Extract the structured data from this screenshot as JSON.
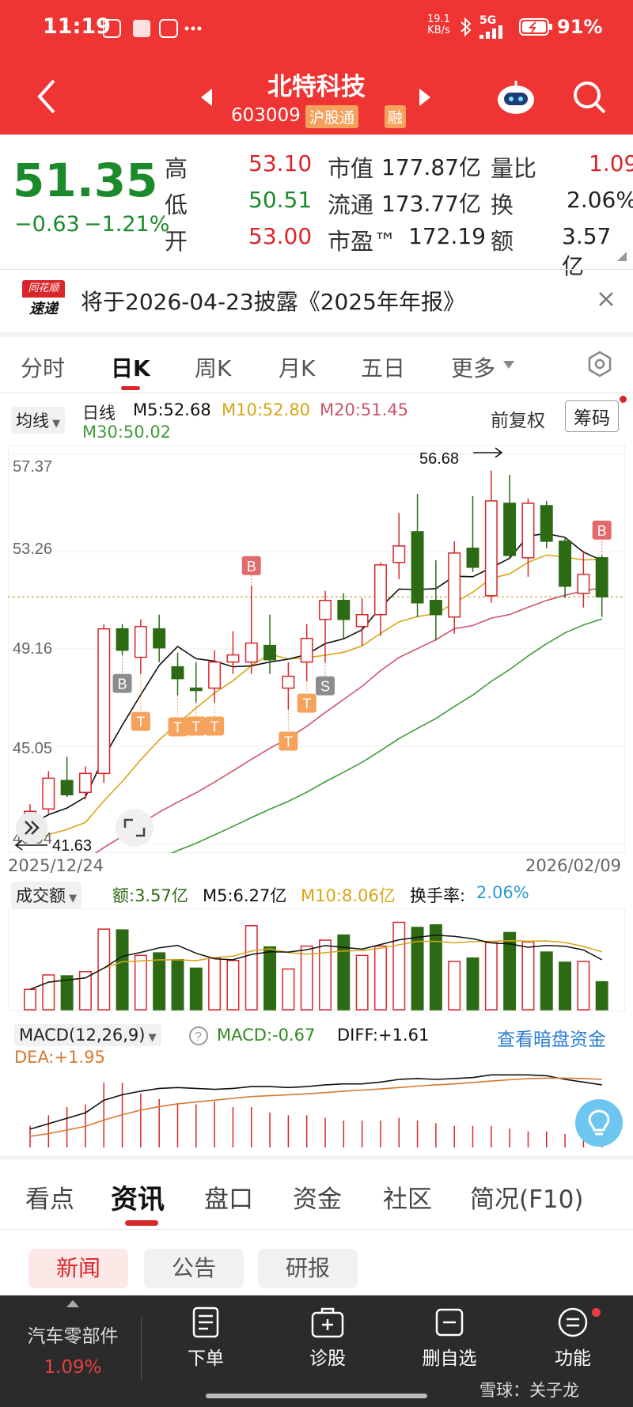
{
  "status_bar": {
    "time": "11:19",
    "net_speed_top": "19.1",
    "net_speed_unit": "KB/s",
    "signal": "5G",
    "battery": "91%"
  },
  "header": {
    "stock_name": "北特科技",
    "stock_code": "603009",
    "tag": "沪股通",
    "tag2": "融"
  },
  "quote": {
    "price": "51.35",
    "change": "−0.63",
    "change_pct": "−1.21%",
    "high_label": "高",
    "high": "53.10",
    "low_label": "低",
    "low": "50.51",
    "open_label": "开",
    "open": "53.00",
    "mcap_label": "市值",
    "mcap": "177.87亿",
    "float_label": "流通",
    "float": "173.77亿",
    "pe_label": "市盈™",
    "pe": "172.19",
    "volratio_label": "量比",
    "volratio": "1.09",
    "turnover_label": "换",
    "turnover": "2.06%",
    "amount_label": "额",
    "amount": "3.57亿"
  },
  "notice": {
    "badge_top": "同花顺",
    "badge_bottom": "速递",
    "text": "将于2026-04-23披露《2025年年报》"
  },
  "chart_tabs": [
    "分时",
    "日K",
    "周K",
    "月K",
    "五日",
    "更多"
  ],
  "active_chart_tab": "日K",
  "ma_bar": {
    "selector": "均线",
    "period": "日线",
    "m5": "M5:52.68",
    "m10": "M10:52.80",
    "m20": "M20:51.45",
    "m30": "M30:50.02",
    "adjust": "前复权",
    "chips": "筹码"
  },
  "kline": {
    "y_ticks": [
      "57.37",
      "53.26",
      "49.16",
      "45.05",
      "40.94"
    ],
    "date_start": "2025/12/24",
    "date_end": "2026/02/09",
    "max_label": "56.68",
    "min_label": "41.63",
    "signal_b": "B",
    "signal_s": "S",
    "signal_t": "T"
  },
  "volume_bar": {
    "selector": "成交额",
    "amount": "额:3.57亿",
    "m5": "M5:6.27亿",
    "m10": "M10:8.06亿",
    "turnover_label": "换手率:",
    "turnover_value": "2.06%"
  },
  "macd_bar": {
    "selector": "MACD(12,26,9)",
    "macd": "MACD:-0.67",
    "diff": "DIFF:+1.61",
    "dea": "DEA:+1.95",
    "link": "查看暗盘资金"
  },
  "info_tabs": [
    "看点",
    "资讯",
    "盘口",
    "资金",
    "社区",
    "简况(F10)"
  ],
  "active_info_tab": "资讯",
  "sub_tabs": [
    "新闻",
    "公告",
    "研报"
  ],
  "bottom_bar": {
    "sector": "汽车零部件",
    "sector_pct": "1.09%",
    "items": [
      "下单",
      "诊股",
      "删自选",
      "功能"
    ]
  },
  "watermark": "雪球：关子龙",
  "colors": {
    "header_red": "#ef3534",
    "up_red": "#d8262b",
    "down_green": "#1a8a2a",
    "candle_green": "#2d6a14",
    "ma5": "#111111",
    "ma10": "#d9a416",
    "ma20": "#c9566b",
    "ma30": "#3f9b3a",
    "t_orange": "#f5a25d",
    "link_blue": "#2a7ed3"
  },
  "chart_data": {
    "type": "candlestick",
    "title": "",
    "period": "日线",
    "date_range": [
      "2025/12/24",
      "2026/02/09"
    ],
    "ylim": [
      40.94,
      57.37
    ],
    "y_ticks": [
      57.37,
      53.26,
      49.16,
      45.05,
      40.94
    ],
    "ohlc": [
      {
        "o": 41.8,
        "h": 42.6,
        "l": 41.63,
        "c": 42.3
      },
      {
        "o": 42.4,
        "h": 44.0,
        "l": 42.2,
        "c": 43.7
      },
      {
        "o": 43.6,
        "h": 44.6,
        "l": 42.9,
        "c": 43.0
      },
      {
        "o": 43.1,
        "h": 44.2,
        "l": 42.8,
        "c": 43.9
      },
      {
        "o": 43.9,
        "h": 50.2,
        "l": 43.5,
        "c": 50.0
      },
      {
        "o": 50.0,
        "h": 50.2,
        "l": 48.9,
        "c": 49.1
      },
      {
        "o": 48.8,
        "h": 50.4,
        "l": 48.1,
        "c": 50.1
      },
      {
        "o": 50.0,
        "h": 50.6,
        "l": 48.6,
        "c": 49.2
      },
      {
        "o": 48.4,
        "h": 49.0,
        "l": 47.2,
        "c": 47.9
      },
      {
        "o": 47.5,
        "h": 48.6,
        "l": 46.9,
        "c": 47.4
      },
      {
        "o": 47.5,
        "h": 49.1,
        "l": 46.9,
        "c": 48.6
      },
      {
        "o": 48.6,
        "h": 49.9,
        "l": 48.1,
        "c": 48.9
      },
      {
        "o": 48.6,
        "h": 51.8,
        "l": 48.1,
        "c": 49.4
      },
      {
        "o": 49.3,
        "h": 50.6,
        "l": 48.1,
        "c": 48.7
      },
      {
        "o": 47.5,
        "h": 48.6,
        "l": 46.6,
        "c": 48.0
      },
      {
        "o": 48.6,
        "h": 50.2,
        "l": 47.8,
        "c": 49.6
      },
      {
        "o": 50.4,
        "h": 51.6,
        "l": 48.6,
        "c": 51.2
      },
      {
        "o": 51.2,
        "h": 51.5,
        "l": 49.6,
        "c": 50.4
      },
      {
        "o": 50.1,
        "h": 51.3,
        "l": 49.3,
        "c": 50.6
      },
      {
        "o": 50.6,
        "h": 52.8,
        "l": 49.7,
        "c": 52.7
      },
      {
        "o": 52.8,
        "h": 54.9,
        "l": 52.1,
        "c": 53.5
      },
      {
        "o": 54.1,
        "h": 55.7,
        "l": 50.5,
        "c": 51.1
      },
      {
        "o": 51.2,
        "h": 52.9,
        "l": 49.5,
        "c": 50.6
      },
      {
        "o": 50.5,
        "h": 53.7,
        "l": 49.8,
        "c": 53.2
      },
      {
        "o": 53.4,
        "h": 55.6,
        "l": 52.4,
        "c": 52.6
      },
      {
        "o": 51.4,
        "h": 56.68,
        "l": 51.1,
        "c": 55.4
      },
      {
        "o": 55.3,
        "h": 56.5,
        "l": 53.0,
        "c": 53.1
      },
      {
        "o": 53.0,
        "h": 55.5,
        "l": 52.2,
        "c": 55.3
      },
      {
        "o": 55.2,
        "h": 55.4,
        "l": 53.4,
        "c": 53.7
      },
      {
        "o": 53.7,
        "h": 53.9,
        "l": 51.3,
        "c": 51.8
      },
      {
        "o": 51.5,
        "h": 53.3,
        "l": 50.9,
        "c": 52.3
      },
      {
        "o": 53.0,
        "h": 53.1,
        "l": 50.51,
        "c": 51.35
      }
    ],
    "ma": {
      "M5": 52.68,
      "M10": 52.8,
      "M20": 51.45,
      "M30": 50.02
    },
    "volume": {
      "label": "成交额",
      "last": "3.57亿",
      "M5": "6.27亿",
      "M10": "8.06亿",
      "turnover": "2.06%"
    },
    "macd": {
      "params": "12,26,9",
      "MACD": -0.67,
      "DIFF": 1.61,
      "DEA": 1.95
    }
  }
}
